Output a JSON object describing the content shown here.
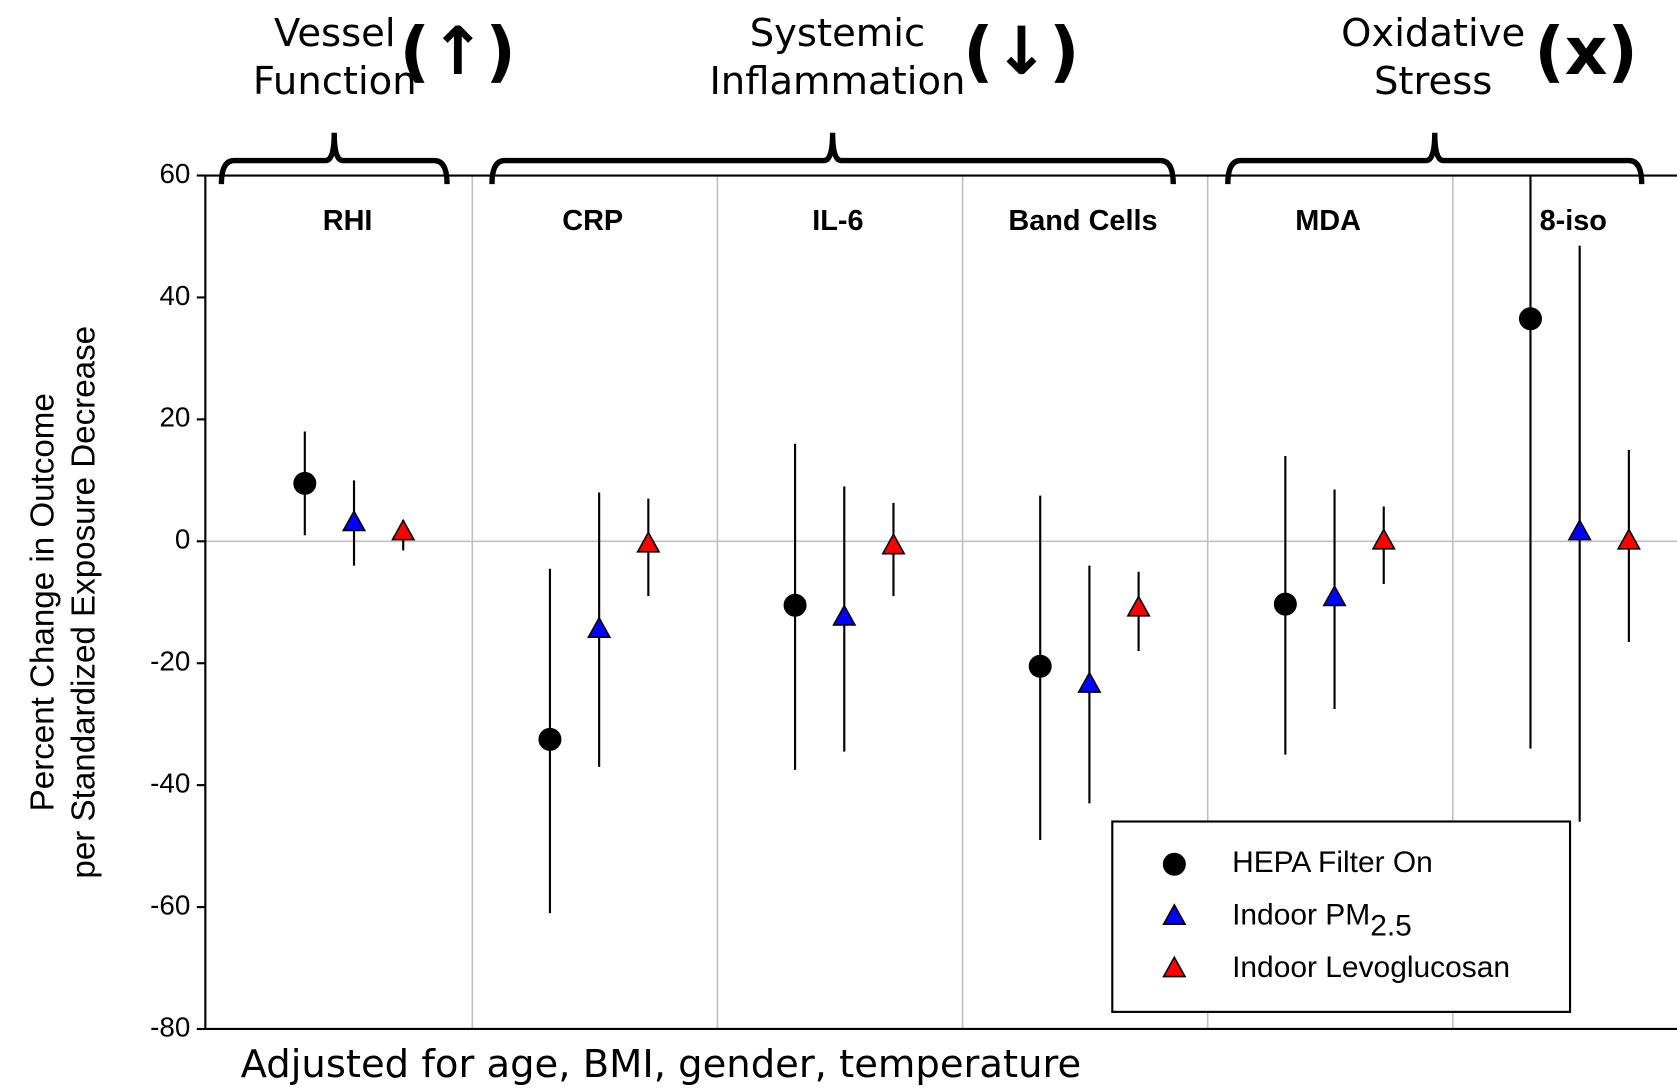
{
  "chart_data": {
    "type": "errorbar",
    "groups": [
      {
        "lines": [
          "Vessel",
          "Function"
        ],
        "symbol": "(↑)"
      },
      {
        "lines": [
          "Systemic",
          "Inflammation"
        ],
        "symbol": "(↓)"
      },
      {
        "lines": [
          "Oxidative",
          "Stress"
        ],
        "symbol": "(x)"
      }
    ],
    "categories": [
      "RHI",
      "CRP",
      "IL-6",
      "Band Cells",
      "MDA",
      "8-iso"
    ],
    "series": [
      {
        "name": "HEPA Filter On",
        "color": "#000000",
        "marker": "circle",
        "values": [
          9.5,
          -32.5,
          -10.5,
          -20.5,
          -10.3,
          36.5
        ],
        "lower": [
          1,
          -61,
          -37.5,
          -49,
          -35,
          -34
        ],
        "upper": [
          18,
          -4.5,
          16,
          7.5,
          14,
          60
        ]
      },
      {
        "name": "Indoor PM2.5",
        "color": "#0000ff",
        "marker": "triangle",
        "values": [
          3,
          -14.5,
          -12.5,
          -23.5,
          -9.3,
          1.5
        ],
        "lower": [
          -4,
          -37,
          -34.5,
          -43,
          -27.5,
          -46
        ],
        "upper": [
          10,
          8,
          9,
          -4,
          8.5,
          48.5
        ]
      },
      {
        "name": "Indoor Levoglucosan",
        "color": "#ff0000",
        "marker": "triangle",
        "values": [
          1.5,
          -0.5,
          -0.8,
          -11,
          0,
          0
        ],
        "lower": [
          -1.5,
          -9,
          -9,
          -18,
          -7,
          -16.5
        ],
        "upper": [
          3.5,
          7,
          6.3,
          -5,
          5.7,
          15
        ]
      }
    ],
    "y_label": [
      "Percent Change in Outcome",
      "per Standardized Exposure Decrease"
    ],
    "note": "Adjusted for age, BMI, gender, temperature",
    "ylim": [
      -80,
      60
    ],
    "yticks": [
      -80,
      -60,
      -40,
      -20,
      0,
      20,
      40,
      60
    ],
    "grid": true
  }
}
